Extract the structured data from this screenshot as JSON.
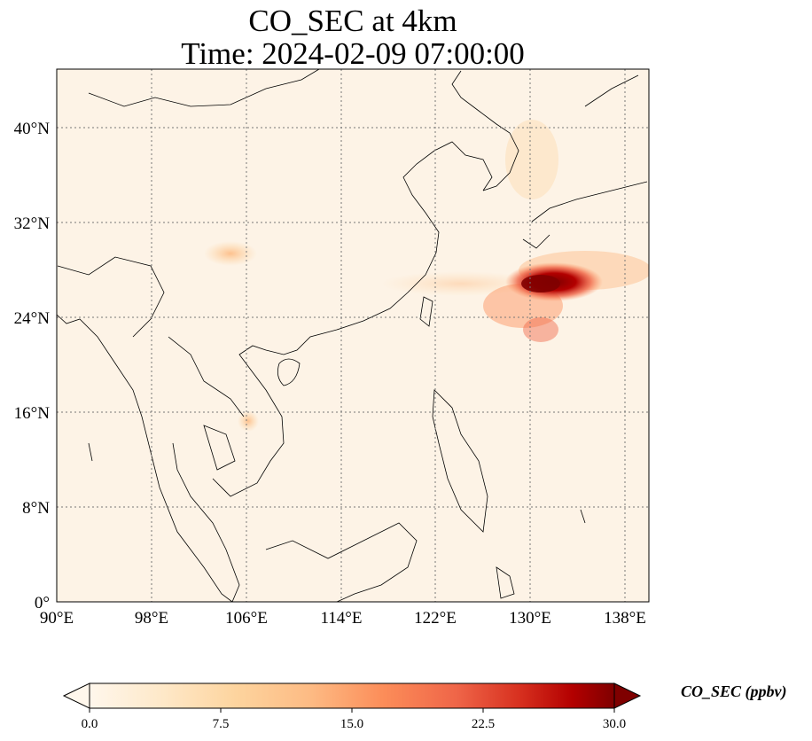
{
  "title": {
    "line1": "CO_SEC at 4km",
    "line2": "Time: 2024-02-09 07:00:00"
  },
  "map": {
    "lon_range": [
      90,
      140
    ],
    "lat_range": [
      0,
      45
    ],
    "x_ticks": [
      "90°E",
      "98°E",
      "106°E",
      "114°E",
      "122°E",
      "130°E",
      "138°E"
    ],
    "y_ticks": [
      "0°",
      "8°N",
      "16°N",
      "24°N",
      "32°N",
      "40°N"
    ],
    "background_color": "#fdf3e6",
    "coastline_color": "#000000"
  },
  "colorbar": {
    "label": "CO_SEC (ppbv)",
    "ticks": [
      "0.0",
      "7.5",
      "15.0",
      "22.5",
      "30.0"
    ],
    "range": [
      0,
      30
    ],
    "colormap": "OrRd",
    "colors": [
      "#fff7ec",
      "#fee8c8",
      "#fdd49e",
      "#fdbb84",
      "#fc8d59",
      "#ef6548",
      "#d7301f",
      "#b30000",
      "#7f0000"
    ]
  }
}
